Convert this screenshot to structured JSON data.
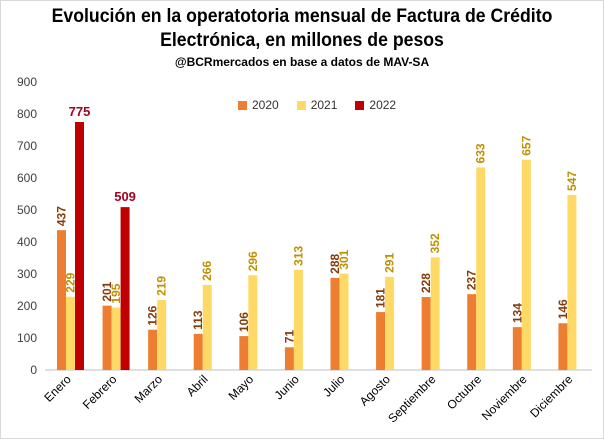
{
  "title_line1": "Evolución en la operatotoria mensual de Factura de Crédito",
  "title_line2": "Electrónica, en millones de pesos",
  "subtitle": "@BCRmercados  en base a datos de MAV-SA",
  "colors": {
    "s2020": "#ed7d31",
    "s2021": "#ffd966",
    "s2022": "#c00000",
    "lbl2020": "#843c0c",
    "lbl2021": "#bf9000",
    "lbl2022": "#a50021"
  },
  "chart_data": {
    "type": "bar",
    "title": "Evolución en la operatotoria mensual de Factura de Crédito Electrónica, en millones de pesos",
    "subtitle": "@BCRmercados  en base a datos de MAV-SA",
    "categories": [
      "Enero",
      "Febrero",
      "Marzo",
      "Abril",
      "Mayo",
      "Junio",
      "Julio",
      "Agosto",
      "Septiembre",
      "Octubre",
      "Noviembre",
      "Diciembre"
    ],
    "series": [
      {
        "name": "2020",
        "values": [
          437,
          201,
          126,
          113,
          106,
          71,
          288,
          181,
          228,
          237,
          134,
          146
        ]
      },
      {
        "name": "2021",
        "values": [
          229,
          195,
          219,
          266,
          296,
          313,
          301,
          291,
          352,
          633,
          657,
          547
        ]
      },
      {
        "name": "2022",
        "values": [
          775,
          509,
          null,
          null,
          null,
          null,
          null,
          null,
          null,
          null,
          null,
          null
        ]
      }
    ],
    "ylim": [
      0,
      900
    ],
    "yticks": [
      0,
      100,
      200,
      300,
      400,
      500,
      600,
      700,
      800,
      900
    ],
    "xlabel": "",
    "ylabel": "",
    "grid": false,
    "legend": "top-center"
  }
}
